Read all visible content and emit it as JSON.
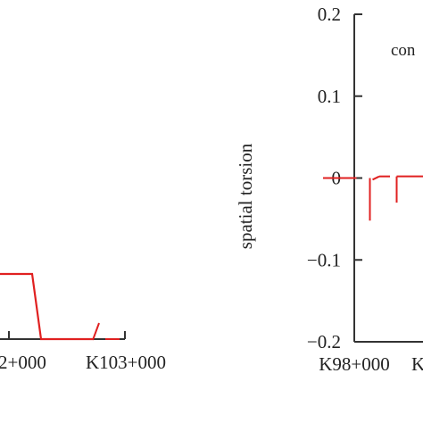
{
  "colors": {
    "series": "#e02020",
    "axis": "#333333",
    "text": "#222222"
  },
  "chart_data": [
    {
      "type": "line",
      "title": "",
      "xlabel": "",
      "ylabel": "",
      "x_tick_labels": [
        "2+000",
        "K103+000"
      ],
      "ylim": [
        -0.2,
        0.2
      ],
      "grid": false,
      "series": [
        {
          "x": [
            101.4,
            101.6,
            101.8,
            101.9,
            102.0,
            102.5,
            102.7,
            102.8,
            103.0
          ],
          "values": [
            -0.1,
            -0.1,
            -0.1,
            -0.2,
            -0.2,
            -0.2,
            -0.2,
            -0.2,
            -0.2
          ]
        }
      ]
    },
    {
      "type": "line",
      "title": "",
      "xlabel": "",
      "ylabel": "spatial torsion",
      "annotation": "con",
      "y_ticks": [
        0.2,
        0.1,
        0,
        -0.1,
        -0.2
      ],
      "y_tick_labels": [
        "0.2",
        "0.1",
        "0",
        "−0.1",
        "−0.2"
      ],
      "x_tick_labels": [
        "K98+000",
        "K"
      ],
      "ylim": [
        -0.2,
        0.2
      ],
      "grid": false,
      "series": [
        {
          "x": [
            98.0,
            98.2,
            98.4,
            98.45,
            98.5,
            98.6,
            98.8
          ],
          "values": [
            0,
            0,
            0,
            -0.05,
            0,
            0.005,
            0.005
          ]
        }
      ]
    }
  ]
}
